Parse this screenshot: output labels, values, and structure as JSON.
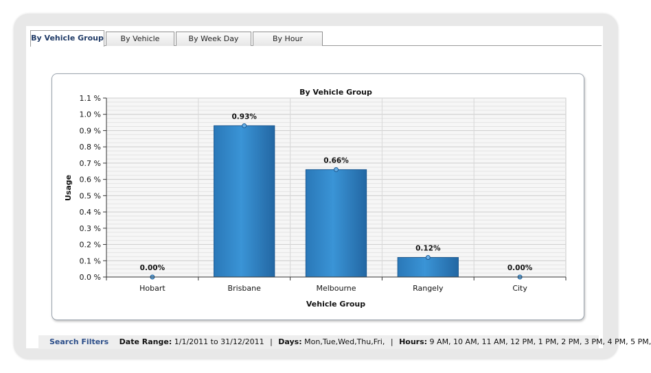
{
  "tabs": [
    {
      "label": "By Vehicle Group",
      "active": true
    },
    {
      "label": "By Vehicle",
      "active": false
    },
    {
      "label": "By Week Day",
      "active": false
    },
    {
      "label": "By Hour",
      "active": false
    }
  ],
  "chart_data": {
    "type": "bar",
    "title": "By Vehicle Group",
    "xlabel": "Vehicle Group",
    "ylabel": "Usage",
    "categories": [
      "Hobart",
      "Brisbane",
      "Melbourne",
      "Rangely",
      "City"
    ],
    "values": [
      0.0,
      0.93,
      0.66,
      0.12,
      0.0
    ],
    "data_labels": [
      "0.00%",
      "0.93%",
      "0.66%",
      "0.12%",
      "0.00%"
    ],
    "yticks": [
      "0.0 %",
      "0.1 %",
      "0.2 %",
      "0.3 %",
      "0.4 %",
      "0.5 %",
      "0.6 %",
      "0.7 %",
      "0.8 %",
      "0.9 %",
      "1.0 %",
      "1.1 %"
    ],
    "ylim": [
      0,
      1.1
    ],
    "grid": true,
    "bar_color": "#2f83c6"
  },
  "filters": {
    "heading": "Search Filters",
    "date_range_label": "Date Range:",
    "date_range_value": "1/1/2011 to 31/12/2011",
    "days_label": "Days:",
    "days_value": "Mon,Tue,Wed,Thu,Fri,",
    "hours_label": "Hours:",
    "hours_value": "9 AM, 10 AM, 11 AM, 12 PM, 1 PM, 2 PM, 3 PM, 4 PM, 5 PM,",
    "separator": "|"
  }
}
